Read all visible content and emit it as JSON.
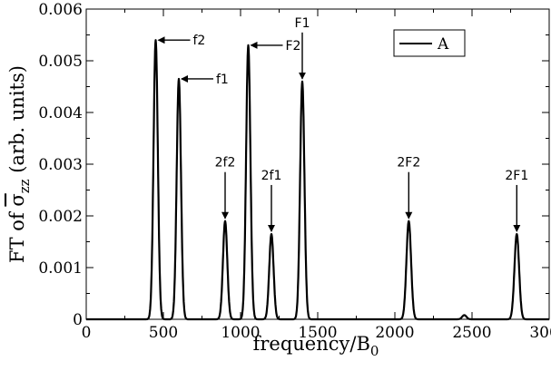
{
  "chart_data": {
    "type": "line",
    "xlabel": "frequency/B",
    "xlabel_sub": "0",
    "ylabel_prefix": "FT of ",
    "ylabel_sym": "σ",
    "ylabel_sub": "zz",
    "ylabel_suffix": " (arb. units)",
    "xlim": [
      0,
      3000
    ],
    "ylim": [
      0,
      0.006
    ],
    "x_ticks": [
      0,
      500,
      1000,
      1500,
      2000,
      2500,
      3000
    ],
    "x_tick_labels": [
      "0",
      "500",
      "1000",
      "1500",
      "2000",
      "2500",
      "3000"
    ],
    "y_ticks": [
      0,
      0.001,
      0.002,
      0.003,
      0.004,
      0.005,
      0.006
    ],
    "y_tick_labels": [
      "0",
      "0.001",
      "0.002",
      "0.003",
      "0.004",
      "0.005",
      "0.006"
    ],
    "grid": false,
    "legend_position": "top-right",
    "series": [
      {
        "name": "A",
        "color": "#000000",
        "peaks": [
          {
            "x": 450,
            "y": 0.0054,
            "w": 14
          },
          {
            "x": 600,
            "y": 0.00465,
            "w": 14
          },
          {
            "x": 900,
            "y": 0.0019,
            "w": 14
          },
          {
            "x": 1050,
            "y": 0.0053,
            "w": 14
          },
          {
            "x": 1200,
            "y": 0.00165,
            "w": 14
          },
          {
            "x": 1400,
            "y": 0.0046,
            "w": 14
          },
          {
            "x": 2090,
            "y": 0.0019,
            "w": 15
          },
          {
            "x": 2450,
            "y": 8e-05,
            "w": 14
          },
          {
            "x": 2790,
            "y": 0.00165,
            "w": 15
          }
        ]
      }
    ],
    "annotations": [
      {
        "text": "f2",
        "x": 450,
        "y": 0.0054,
        "label_side": "right"
      },
      {
        "text": "f1",
        "x": 600,
        "y": 0.00465,
        "label_side": "right"
      },
      {
        "text": "2f2",
        "x": 900,
        "y": 0.0019,
        "label_side": "top"
      },
      {
        "text": "F2",
        "x": 1050,
        "y": 0.0053,
        "label_side": "right"
      },
      {
        "text": "2f1",
        "x": 1200,
        "y": 0.00165,
        "label_side": "top"
      },
      {
        "text": "F1",
        "x": 1400,
        "y": 0.0046,
        "label_side": "top"
      },
      {
        "text": "2F2",
        "x": 2090,
        "y": 0.0019,
        "label_side": "top"
      },
      {
        "text": "2F1",
        "x": 2790,
        "y": 0.00165,
        "label_side": "top"
      }
    ]
  }
}
